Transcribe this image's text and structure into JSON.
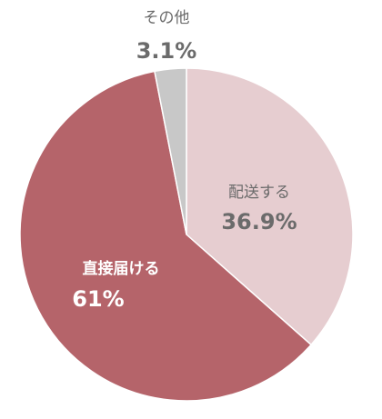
{
  "chart_data": {
    "type": "pie",
    "categories": [
      "配送する",
      "直接届ける",
      "その他"
    ],
    "values": [
      36.9,
      61,
      3.1
    ],
    "value_labels": [
      "36.9%",
      "61%",
      "3.1%"
    ],
    "colors": [
      "#e6cdd0",
      "#b5646a",
      "#c8c8c8"
    ]
  }
}
